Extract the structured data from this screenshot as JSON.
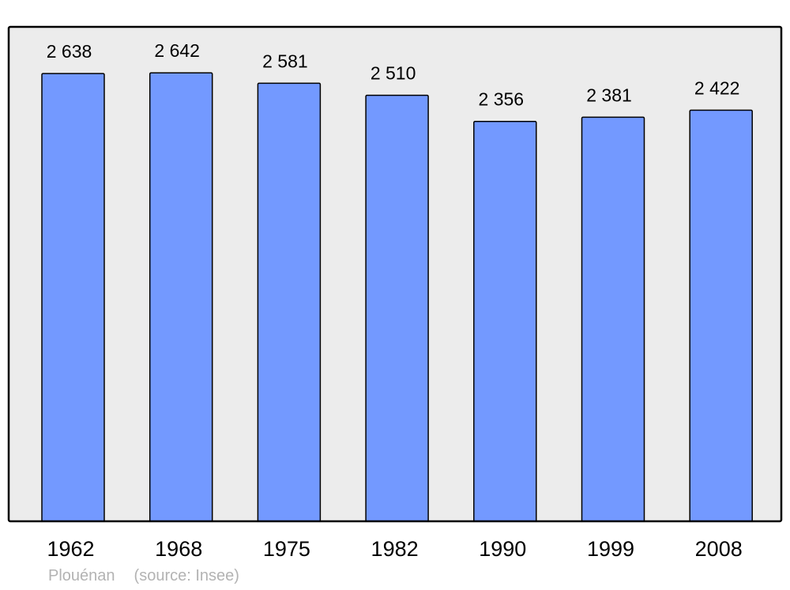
{
  "chart_data": {
    "type": "bar",
    "title": "",
    "xlabel": "",
    "ylabel": "",
    "categories": [
      "1962",
      "1968",
      "1975",
      "1982",
      "1990",
      "1999",
      "2008"
    ],
    "values": [
      2638,
      2642,
      2581,
      2510,
      2356,
      2381,
      2422
    ],
    "value_labels": [
      "2 638",
      "2 642",
      "2 581",
      "2 510",
      "2 356",
      "2 381",
      "2 422"
    ],
    "ylim": [
      0,
      2913
    ],
    "grid": false,
    "colors": {
      "bar": "#7399ff",
      "plot_background": "#ececec",
      "border": "#000000"
    }
  },
  "footer": {
    "place": "Plouénan",
    "source": "(source: Insee)"
  }
}
